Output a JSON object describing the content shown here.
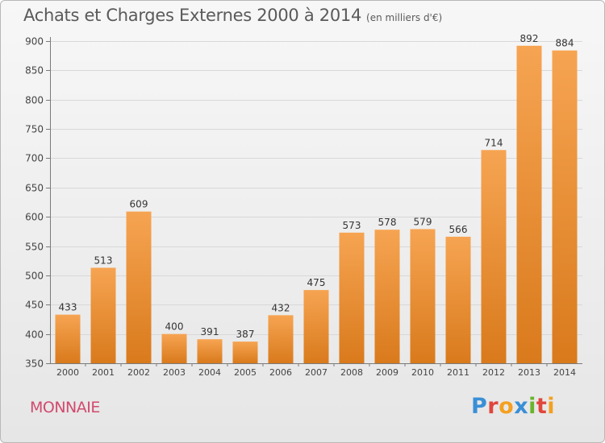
{
  "header": {
    "title": "Achats et Charges Externes 2000 à 2014",
    "unit": "(en milliers d'€)"
  },
  "footer": {
    "commune": "MONNAIE",
    "brand": "Proxiti"
  },
  "colors": {
    "bar_top": "#f6a452",
    "bar_bottom": "#d97a1c",
    "grid": "#d8d8d8",
    "axis": "#7a7a7a",
    "commune_text": "#d24a6e",
    "brand_letters": [
      "#3a8fd6",
      "#e0463c",
      "#f4a020",
      "#3a8fd6",
      "#69b42c",
      "#e0463c",
      "#f4a020"
    ]
  },
  "chart_data": {
    "type": "bar",
    "title": "Achats et Charges Externes 2000 à 2014",
    "subtitle": "(en milliers d'€)",
    "xlabel": "",
    "ylabel": "",
    "categories": [
      "2000",
      "2001",
      "2002",
      "2003",
      "2004",
      "2005",
      "2006",
      "2007",
      "2008",
      "2009",
      "2010",
      "2011",
      "2012",
      "2013",
      "2014"
    ],
    "values": [
      433,
      513,
      609,
      400,
      391,
      387,
      432,
      475,
      573,
      578,
      579,
      566,
      714,
      892,
      884
    ],
    "ylim": [
      350,
      900
    ],
    "yticks": [
      350,
      400,
      450,
      500,
      550,
      600,
      650,
      700,
      750,
      800,
      850,
      900
    ],
    "grid": true,
    "data_labels": true,
    "legend": "none"
  }
}
